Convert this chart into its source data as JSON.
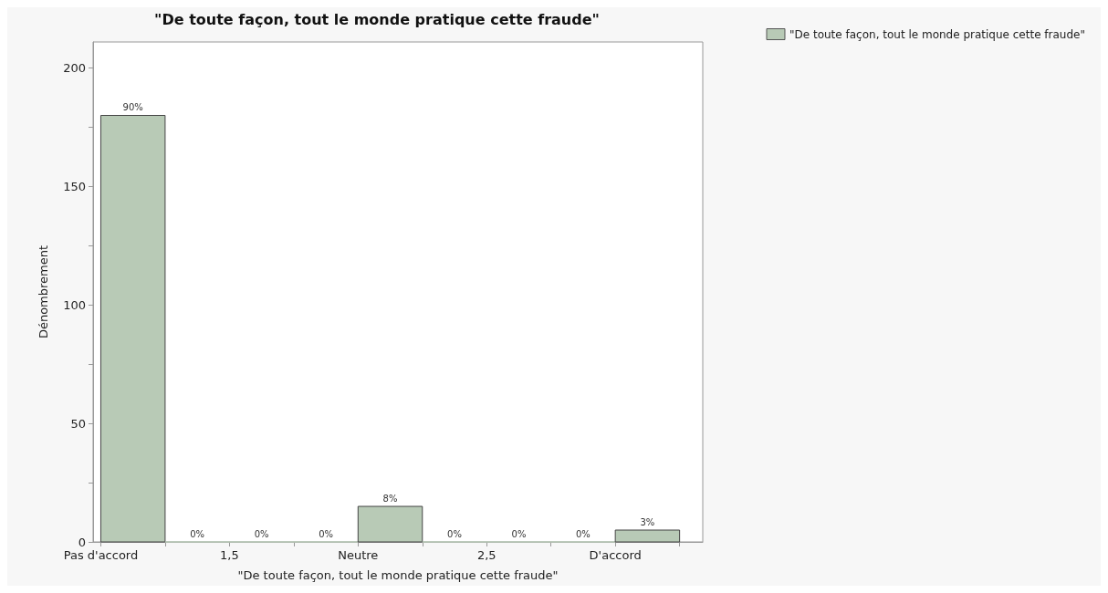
{
  "chart_data": {
    "type": "histogram",
    "title": "\"De toute façon, tout le monde pratique cette fraude\"",
    "xlabel": "\"De toute façon, tout le monde pratique cette fraude\"",
    "ylabel": "Dénombrement",
    "bins": [
      1,
      1.25,
      1.5,
      1.75,
      2,
      2.25,
      2.5,
      2.75,
      3,
      3.25
    ],
    "series": [
      {
        "name": "\"De toute façon, tout le monde pratique cette fraude\"",
        "color": "#b8cab6",
        "values": [
          180,
          0,
          0,
          0,
          15,
          0,
          0,
          0,
          5
        ]
      }
    ],
    "annotations": [
      {
        "text": "90%",
        "x": 1.125,
        "y": 180
      },
      {
        "text": "0%",
        "x": 1.375,
        "y": 0
      },
      {
        "text": "0%",
        "x": 1.625,
        "y": 0
      },
      {
        "text": "0%",
        "x": 1.875,
        "y": 0
      },
      {
        "text": "8%",
        "x": 2.125,
        "y": 15
      },
      {
        "text": "0%",
        "x": 2.375,
        "y": 0
      },
      {
        "text": "0%",
        "x": 2.625,
        "y": 0
      },
      {
        "text": "0%",
        "x": 2.875,
        "y": 0
      },
      {
        "text": "3%",
        "x": 3.125,
        "y": 5
      }
    ],
    "xlim": [
      0.97,
      3.34
    ],
    "xticks": [
      {
        "value": 1,
        "label": "Pas d'accord"
      },
      {
        "value": 1.25,
        "label": null
      },
      {
        "value": 1.5,
        "label": "1,5"
      },
      {
        "value": 1.75,
        "label": null
      },
      {
        "value": 2,
        "label": "Neutre"
      },
      {
        "value": 2.25,
        "label": null
      },
      {
        "value": 2.5,
        "label": "2,5"
      },
      {
        "value": 2.75,
        "label": null
      },
      {
        "value": 3,
        "label": "D'accord"
      },
      {
        "value": 3.25,
        "label": null
      }
    ],
    "ylim": [
      0,
      211
    ],
    "yticks": [
      0,
      {
        "value": 25,
        "label": null
      },
      50,
      {
        "value": 75,
        "label": null
      },
      100,
      {
        "value": 125,
        "label": null
      },
      150,
      {
        "value": 175,
        "label": null
      },
      200
    ],
    "grid": false,
    "legend": "top right"
  }
}
